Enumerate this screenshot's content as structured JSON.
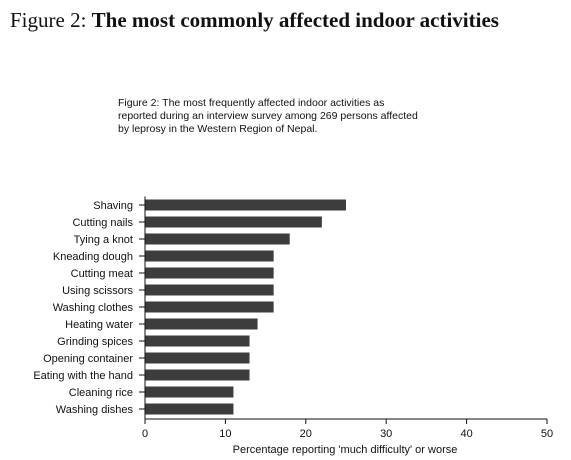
{
  "header": {
    "figure_prefix": "Figure 2:",
    "title": "The most commonly affected indoor activities"
  },
  "caption": {
    "line1": "Figure 2: The most frequently affected indoor activities as",
    "line2": "reported during an interview survey among 269 persons affected",
    "line3": "by leprosy in the Western Region of Nepal."
  },
  "colors": {
    "bar": "#3d3d3d",
    "axis": "#111111"
  },
  "chart_data": {
    "type": "bar",
    "orientation": "horizontal",
    "categories": [
      "Shaving",
      "Cutting nails",
      "Tying a knot",
      "Kneading dough",
      "Cutting meat",
      "Using scissors",
      "Washing clothes",
      "Heating water",
      "Grinding spices",
      "Opening container",
      "Eating with the hand",
      "Cleaning rice",
      "Washing dishes"
    ],
    "values": [
      25,
      22,
      18,
      16,
      16,
      16,
      16,
      14,
      13,
      13,
      13,
      11,
      11
    ],
    "xlabel": "Percentage reporting 'much difficulty' or worse",
    "ylabel": "",
    "xlim": [
      0,
      50
    ],
    "xticks": [
      0,
      10,
      20,
      30,
      40,
      50
    ],
    "grid": false,
    "legend": "none"
  }
}
